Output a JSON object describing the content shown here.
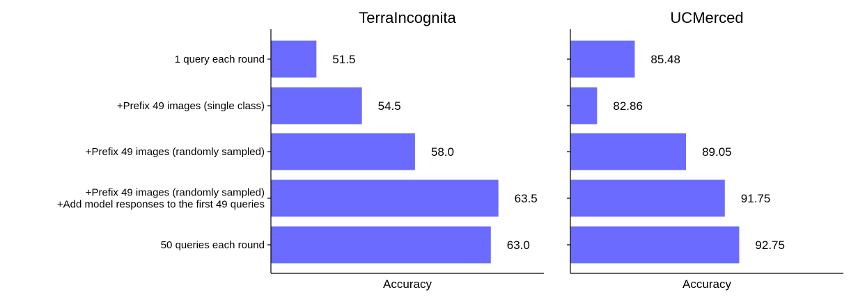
{
  "colors": {
    "bar": "#6b6bff"
  },
  "chart_data": [
    {
      "type": "bar",
      "orientation": "horizontal",
      "title": "TerraIncognita",
      "xlabel": "Accuracy",
      "ylabel": "",
      "xlim": [
        48.5,
        66.5
      ],
      "categories": [
        [
          "1 query each round"
        ],
        [
          "+Prefix 49 images (single class)"
        ],
        [
          "+Prefix 49 images (randomly sampled)"
        ],
        [
          "+Prefix 49 images (randomly sampled)",
          "+Add model responses to the first 49 queries"
        ],
        [
          "50 queries each round"
        ]
      ],
      "values": [
        51.5,
        54.5,
        58.0,
        63.5,
        63.0
      ],
      "value_labels": [
        "51.5",
        "54.5",
        "58.0",
        "63.5",
        "63.0"
      ]
    },
    {
      "type": "bar",
      "orientation": "horizontal",
      "title": "UCMerced",
      "xlabel": "Accuracy",
      "ylabel": "",
      "xlim": [
        81.0,
        100.0
      ],
      "categories": [
        [
          "1 query each round"
        ],
        [
          "+Prefix 49 images (single class)"
        ],
        [
          "+Prefix 49 images (randomly sampled)"
        ],
        [
          "+Prefix 49 images (randomly sampled)",
          "+Add model responses to the first 49 queries"
        ],
        [
          "50 queries each round"
        ]
      ],
      "values": [
        85.48,
        82.86,
        89.05,
        91.75,
        92.75
      ],
      "value_labels": [
        "85.48",
        "82.86",
        "89.05",
        "91.75",
        "92.75"
      ]
    }
  ]
}
